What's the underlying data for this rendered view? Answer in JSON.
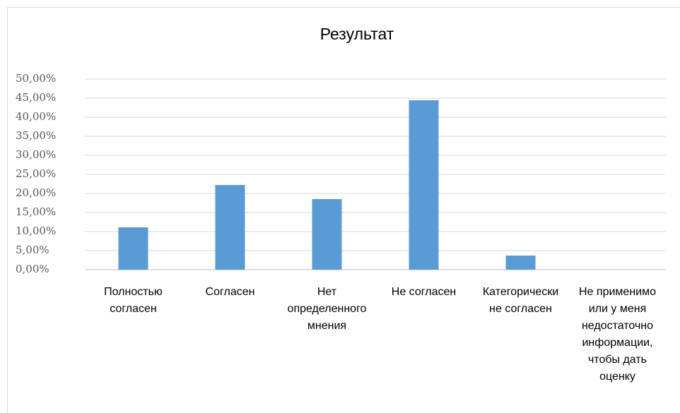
{
  "chart_data": {
    "type": "bar",
    "title": "Результат",
    "categories": [
      "Полностью согласен",
      "Согласен",
      "Нет определенного мнения",
      "Не согласен",
      "Категорически не согласен",
      "Не применимо или у меня недостаточно информации, чтобы дать оценку"
    ],
    "values": [
      11.11,
      22.22,
      18.52,
      44.44,
      3.7,
      0
    ],
    "color": "#5b9bd5",
    "ylim": [
      0,
      50
    ],
    "yticks": [
      {
        "value": 0,
        "label": "0,00%"
      },
      {
        "value": 5,
        "label": "5,00%"
      },
      {
        "value": 10,
        "label": "10,00%"
      },
      {
        "value": 15,
        "label": "15,00%"
      },
      {
        "value": 20,
        "label": "20,00%"
      },
      {
        "value": 25,
        "label": "25,00%"
      },
      {
        "value": 30,
        "label": "30,00%"
      },
      {
        "value": 35,
        "label": "35,00%"
      },
      {
        "value": 40,
        "label": "40,00%"
      },
      {
        "value": 45,
        "label": "45,00%"
      },
      {
        "value": 50,
        "label": "50,00%"
      }
    ],
    "grid": true
  }
}
